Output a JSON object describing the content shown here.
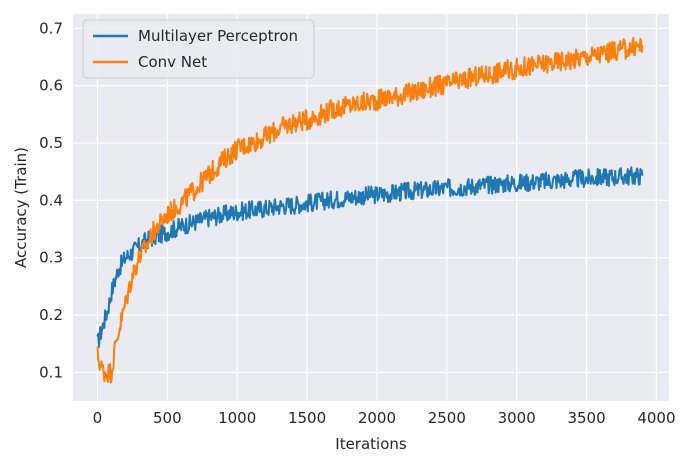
{
  "chart_data": {
    "type": "line",
    "title": "",
    "xlabel": "Iterations",
    "ylabel": "Accuracy (Train)",
    "xlim": [
      -175,
      4090
    ],
    "ylim": [
      0.05,
      0.725
    ],
    "x_ticks": [
      0,
      500,
      1000,
      1500,
      2000,
      2500,
      3000,
      3500,
      4000
    ],
    "y_ticks": [
      0.1,
      0.2,
      0.3,
      0.4,
      0.5,
      0.6,
      0.7
    ],
    "grid": true,
    "legend_position": "top-left",
    "background_color": "#eaeaf2",
    "grid_color": "#ffffff",
    "series": [
      {
        "name": "Multilayer Perceptron",
        "color": "#1f77b4",
        "x": [
          0,
          25,
          50,
          75,
          100,
          125,
          150,
          200,
          250,
          300,
          350,
          400,
          450,
          500,
          550,
          600,
          700,
          800,
          900,
          1000,
          1100,
          1200,
          1300,
          1400,
          1500,
          1600,
          1700,
          1800,
          1900,
          2000,
          2100,
          2200,
          2300,
          2400,
          2500,
          2600,
          2700,
          2800,
          2900,
          3000,
          3100,
          3200,
          3300,
          3400,
          3500,
          3600,
          3700,
          3800,
          3900
        ],
        "y": [
          0.15,
          0.17,
          0.19,
          0.21,
          0.24,
          0.26,
          0.28,
          0.3,
          0.31,
          0.32,
          0.33,
          0.335,
          0.34,
          0.345,
          0.35,
          0.355,
          0.362,
          0.37,
          0.375,
          0.38,
          0.383,
          0.386,
          0.39,
          0.392,
          0.395,
          0.398,
          0.402,
          0.405,
          0.408,
          0.41,
          0.412,
          0.415,
          0.417,
          0.419,
          0.421,
          0.423,
          0.425,
          0.427,
          0.429,
          0.43,
          0.432,
          0.433,
          0.435,
          0.437,
          0.438,
          0.44,
          0.441,
          0.442,
          0.443
        ]
      },
      {
        "name": "Conv Net",
        "color": "#ff7f0e",
        "x": [
          0,
          25,
          50,
          75,
          100,
          125,
          150,
          200,
          250,
          300,
          350,
          400,
          450,
          500,
          550,
          600,
          700,
          800,
          900,
          1000,
          1100,
          1200,
          1300,
          1400,
          1500,
          1600,
          1700,
          1800,
          1900,
          2000,
          2100,
          2200,
          2300,
          2400,
          2500,
          2600,
          2700,
          2800,
          2900,
          3000,
          3100,
          3200,
          3300,
          3400,
          3500,
          3600,
          3700,
          3800,
          3900
        ],
        "y": [
          0.13,
          0.11,
          0.1,
          0.1,
          0.1,
          0.14,
          0.17,
          0.22,
          0.27,
          0.3,
          0.32,
          0.345,
          0.36,
          0.375,
          0.385,
          0.395,
          0.42,
          0.445,
          0.47,
          0.49,
          0.5,
          0.51,
          0.525,
          0.535,
          0.54,
          0.55,
          0.56,
          0.565,
          0.57,
          0.575,
          0.58,
          0.585,
          0.59,
          0.598,
          0.602,
          0.608,
          0.615,
          0.62,
          0.625,
          0.63,
          0.634,
          0.638,
          0.642,
          0.646,
          0.65,
          0.655,
          0.66,
          0.665,
          0.67
        ]
      }
    ]
  }
}
